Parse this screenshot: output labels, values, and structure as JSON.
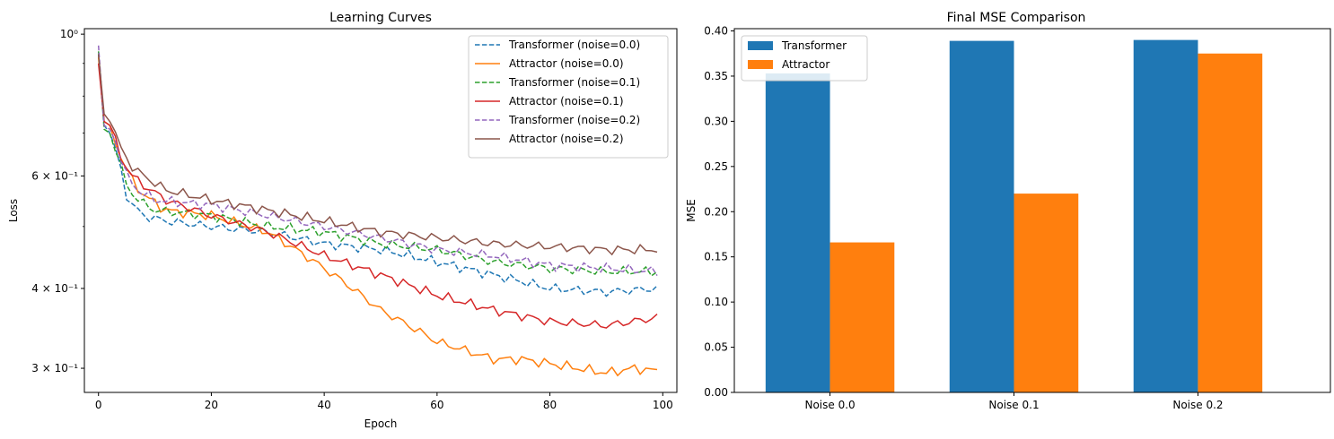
{
  "chart_data": [
    {
      "type": "line",
      "title": "Learning Curves",
      "xlabel": "Epoch",
      "ylabel": "Loss",
      "yscale": "log",
      "xlim": [
        -2.5,
        102.5
      ],
      "ylim": [
        0.275,
        1.02
      ],
      "xticks": [
        0,
        20,
        40,
        60,
        80,
        100
      ],
      "yticks": [
        {
          "value": 1.0,
          "label": "10⁰"
        },
        {
          "value": 0.6,
          "label": "6 × 10⁻¹"
        },
        {
          "value": 0.4,
          "label": "4 × 10⁻¹"
        },
        {
          "value": 0.3,
          "label": "3 × 10⁻¹"
        }
      ],
      "minor_yticks": [
        0.5,
        0.7,
        0.8,
        0.9
      ],
      "legend_position": "top-right",
      "series": [
        {
          "name": "Transformer (noise=0.0)",
          "color": "#1f77b4",
          "dash": true,
          "knots": [
            [
              0,
              0.93
            ],
            [
              1,
              0.72
            ],
            [
              2,
              0.7
            ],
            [
              3,
              0.66
            ],
            [
              4,
              0.61
            ],
            [
              5,
              0.56
            ],
            [
              6,
              0.54
            ],
            [
              8,
              0.52
            ],
            [
              12,
              0.51
            ],
            [
              20,
              0.5
            ],
            [
              30,
              0.49
            ],
            [
              40,
              0.47
            ],
            [
              50,
              0.46
            ],
            [
              60,
              0.44
            ],
            [
              70,
              0.42
            ],
            [
              80,
              0.4
            ],
            [
              90,
              0.395
            ],
            [
              99,
              0.4
            ]
          ]
        },
        {
          "name": "Attractor (noise=0.0)",
          "color": "#ff7f0e",
          "dash": false,
          "knots": [
            [
              0,
              0.92
            ],
            [
              1,
              0.73
            ],
            [
              2,
              0.72
            ],
            [
              3,
              0.68
            ],
            [
              4,
              0.64
            ],
            [
              6,
              0.59
            ],
            [
              8,
              0.56
            ],
            [
              12,
              0.53
            ],
            [
              20,
              0.52
            ],
            [
              30,
              0.49
            ],
            [
              35,
              0.46
            ],
            [
              40,
              0.43
            ],
            [
              45,
              0.4
            ],
            [
              50,
              0.37
            ],
            [
              55,
              0.35
            ],
            [
              60,
              0.33
            ],
            [
              65,
              0.32
            ],
            [
              70,
              0.31
            ],
            [
              75,
              0.31
            ],
            [
              80,
              0.305
            ],
            [
              85,
              0.3
            ],
            [
              90,
              0.295
            ],
            [
              95,
              0.3
            ],
            [
              99,
              0.297
            ]
          ]
        },
        {
          "name": "Transformer (noise=0.1)",
          "color": "#2ca02c",
          "dash": true,
          "knots": [
            [
              0,
              0.94
            ],
            [
              1,
              0.71
            ],
            [
              2,
              0.7
            ],
            [
              3,
              0.66
            ],
            [
              4,
              0.62
            ],
            [
              5,
              0.58
            ],
            [
              7,
              0.55
            ],
            [
              10,
              0.53
            ],
            [
              20,
              0.52
            ],
            [
              30,
              0.5
            ],
            [
              40,
              0.49
            ],
            [
              50,
              0.47
            ],
            [
              60,
              0.46
            ],
            [
              70,
              0.44
            ],
            [
              80,
              0.43
            ],
            [
              90,
              0.425
            ],
            [
              99,
              0.425
            ]
          ]
        },
        {
          "name": "Attractor (noise=0.1)",
          "color": "#d62728",
          "dash": false,
          "knots": [
            [
              0,
              0.9
            ],
            [
              1,
              0.73
            ],
            [
              2,
              0.72
            ],
            [
              3,
              0.68
            ],
            [
              4,
              0.64
            ],
            [
              6,
              0.6
            ],
            [
              8,
              0.58
            ],
            [
              12,
              0.55
            ],
            [
              20,
              0.52
            ],
            [
              30,
              0.49
            ],
            [
              40,
              0.45
            ],
            [
              50,
              0.42
            ],
            [
              60,
              0.39
            ],
            [
              70,
              0.37
            ],
            [
              80,
              0.355
            ],
            [
              90,
              0.35
            ],
            [
              99,
              0.36
            ]
          ]
        },
        {
          "name": "Transformer (noise=0.2)",
          "color": "#9467bd",
          "dash": true,
          "knots": [
            [
              0,
              0.96
            ],
            [
              1,
              0.72
            ],
            [
              2,
              0.71
            ],
            [
              3,
              0.68
            ],
            [
              4,
              0.64
            ],
            [
              5,
              0.6
            ],
            [
              7,
              0.57
            ],
            [
              10,
              0.55
            ],
            [
              20,
              0.54
            ],
            [
              30,
              0.52
            ],
            [
              40,
              0.5
            ],
            [
              50,
              0.48
            ],
            [
              60,
              0.46
            ],
            [
              70,
              0.45
            ],
            [
              80,
              0.435
            ],
            [
              90,
              0.43
            ],
            [
              99,
              0.425
            ]
          ]
        },
        {
          "name": "Attractor (noise=0.2)",
          "color": "#8c564b",
          "dash": false,
          "knots": [
            [
              0,
              0.93
            ],
            [
              1,
              0.75
            ],
            [
              2,
              0.73
            ],
            [
              3,
              0.7
            ],
            [
              4,
              0.66
            ],
            [
              6,
              0.62
            ],
            [
              8,
              0.6
            ],
            [
              12,
              0.57
            ],
            [
              20,
              0.55
            ],
            [
              30,
              0.53
            ],
            [
              40,
              0.51
            ],
            [
              50,
              0.49
            ],
            [
              60,
              0.48
            ],
            [
              70,
              0.47
            ],
            [
              80,
              0.465
            ],
            [
              90,
              0.46
            ],
            [
              99,
              0.46
            ]
          ]
        }
      ]
    },
    {
      "type": "bar",
      "title": "Final MSE Comparison",
      "xlabel": "",
      "ylabel": "MSE",
      "ylim": [
        0,
        0.4025
      ],
      "yticks": [
        0.0,
        0.05,
        0.1,
        0.15,
        0.2,
        0.25,
        0.3,
        0.35,
        0.4
      ],
      "categories": [
        "Noise 0.0",
        "Noise 0.1",
        "Noise 0.2"
      ],
      "legend_position": "top-left",
      "series": [
        {
          "name": "Transformer",
          "color": "#1f77b4",
          "values": [
            0.353,
            0.389,
            0.39
          ]
        },
        {
          "name": "Attractor",
          "color": "#ff7f0e",
          "values": [
            0.166,
            0.22,
            0.375
          ]
        }
      ]
    }
  ]
}
